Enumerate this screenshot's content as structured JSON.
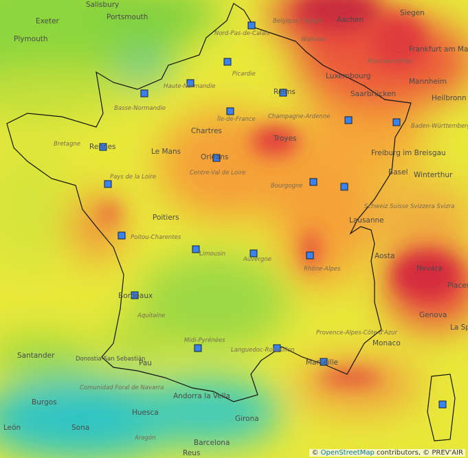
{
  "places": [
    "Salisbury",
    "Portsmouth",
    "Exeter",
    "Plymouth",
    "Aachen",
    "Siegen",
    "Frankfurt am Main",
    "Luxembourg",
    "Saarbrücken",
    "Mannheim",
    "Heilbronn",
    "Reims",
    "Chartres",
    "Troyes",
    "Rennes",
    "Le Mans",
    "Orléans",
    "Freiburg im Breisgau",
    "Basel",
    "Winterthur",
    "Poitiers",
    "Lausanne",
    "Aosta",
    "Novara",
    "Piacenza",
    "Genova",
    "La Spezia",
    "Bordeaux",
    "Monaco",
    "Marseille",
    "Santander",
    "Donostia-San Sebastián",
    "Pau",
    "Andorra la Vella",
    "Girona",
    "Barcelona",
    "Burgos",
    "Huesca",
    "Sona",
    "Reus",
    "León"
  ],
  "regions": [
    "Bretagne",
    "Basse-Normandie",
    "Haute-Normandie",
    "Picardie",
    "Nord-Pas-de-Calais",
    "Île-de-France",
    "Champagne-Ardenne",
    "Pays de la Loire",
    "Centre-Val de Loire",
    "Bourgogne",
    "Poitou-Charentes",
    "Limousin",
    "Auvergne",
    "Rhône-Alpes",
    "Aquitaine",
    "Midi-Pyrénées",
    "Languedoc-Roussillon",
    "Provence-Alpes-Côte d'Azur",
    "Schweiz Suisse Svizzera Svizra",
    "Comunidad Foral de Navarra",
    "Baden-Württemberg",
    "Rheinland-Pfalz",
    "Belgique / België",
    "Wallonie",
    "Aragón"
  ],
  "attribution": {
    "prefix": "©",
    "link": "OpenStreetMap",
    "suffix": "contributors, © PREV'AIR"
  }
}
